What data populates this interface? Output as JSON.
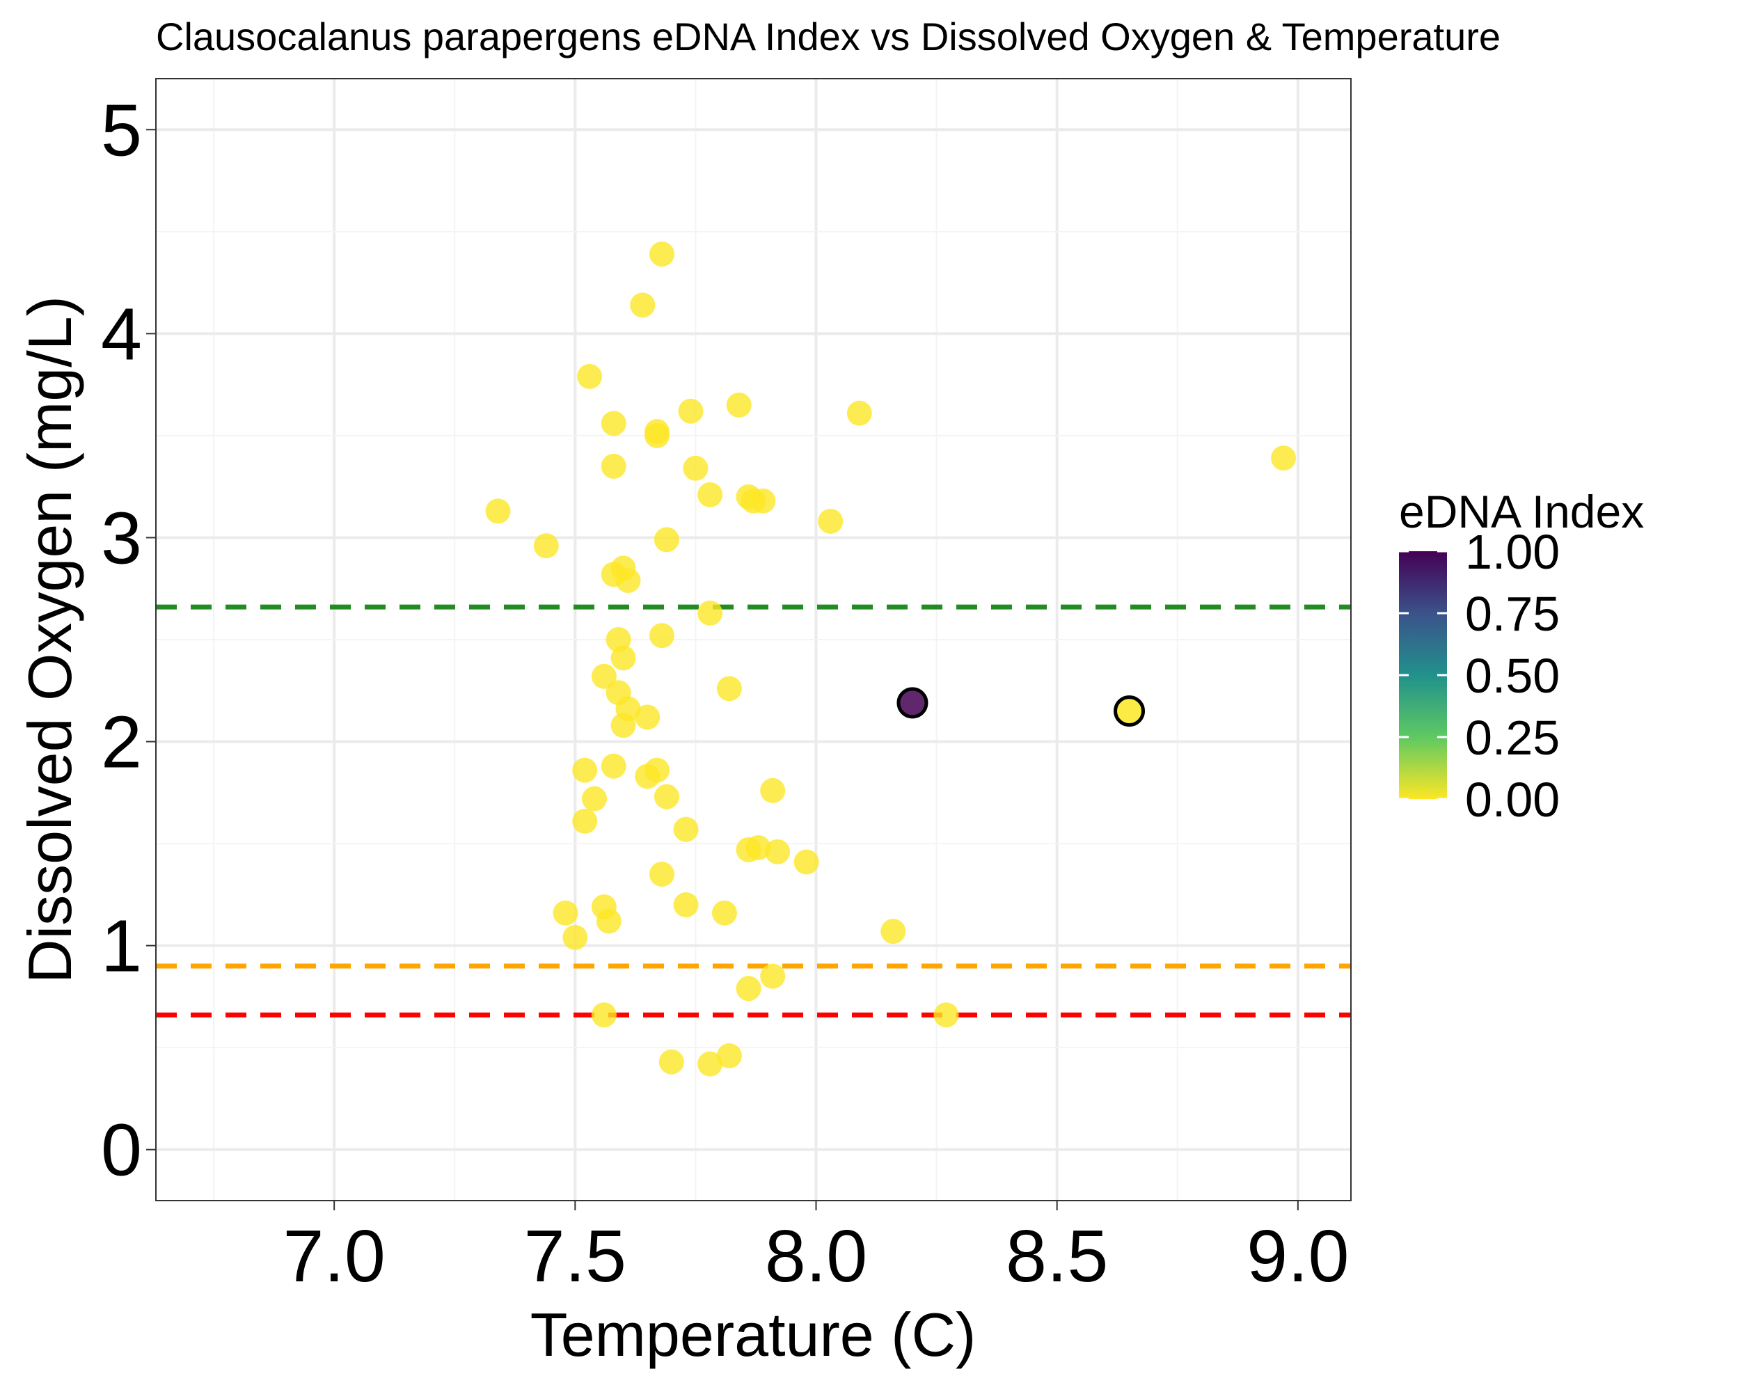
{
  "chart_data": {
    "type": "scatter",
    "title": "Clausocalanus parapergens eDNA Index vs Dissolved Oxygen & Temperature",
    "xlabel": "Temperature (C)",
    "ylabel": "Dissolved Oxygen (mg/L)",
    "xlim": [
      6.63,
      9.11
    ],
    "ylim": [
      -0.25,
      5.25
    ],
    "xticks": [
      7.0,
      7.5,
      8.0,
      8.5,
      9.0
    ],
    "xtick_labels": [
      "7.0",
      "7.5",
      "8.0",
      "8.5",
      "9.0"
    ],
    "yticks": [
      0,
      1,
      2,
      3,
      4,
      5
    ],
    "ytick_labels": [
      "0",
      "1",
      "2",
      "3",
      "4",
      "5"
    ],
    "grid": true,
    "reference_lines": [
      {
        "y": 2.66,
        "color": "#228B22",
        "style": "dashed"
      },
      {
        "y": 0.9,
        "color": "#FFA500",
        "style": "dashed"
      },
      {
        "y": 0.66,
        "color": "#FF0000",
        "style": "dashed"
      }
    ],
    "legend": {
      "title": "eDNA Index",
      "type": "colorbar",
      "placement": "right",
      "ticks": [
        "1.00",
        "0.75",
        "0.50",
        "0.25",
        "0.00"
      ],
      "tick_values": [
        1.0,
        0.75,
        0.5,
        0.25,
        0.0
      ],
      "colormap": [
        "#FDE725",
        "#5EC962",
        "#21918C",
        "#3B528B",
        "#440154"
      ]
    },
    "points": [
      {
        "x": 7.68,
        "y": 4.39,
        "edna": 0.0
      },
      {
        "x": 7.64,
        "y": 4.14,
        "edna": 0.0
      },
      {
        "x": 7.53,
        "y": 3.79,
        "edna": 0.0
      },
      {
        "x": 7.74,
        "y": 3.62,
        "edna": 0.0
      },
      {
        "x": 7.84,
        "y": 3.65,
        "edna": 0.0
      },
      {
        "x": 7.58,
        "y": 3.56,
        "edna": 0.0
      },
      {
        "x": 7.67,
        "y": 3.52,
        "edna": 0.0
      },
      {
        "x": 7.67,
        "y": 3.5,
        "edna": 0.0
      },
      {
        "x": 8.09,
        "y": 3.61,
        "edna": 0.0
      },
      {
        "x": 8.97,
        "y": 3.39,
        "edna": 0.0
      },
      {
        "x": 7.58,
        "y": 3.35,
        "edna": 0.0
      },
      {
        "x": 7.75,
        "y": 3.34,
        "edna": 0.0
      },
      {
        "x": 7.78,
        "y": 3.21,
        "edna": 0.0
      },
      {
        "x": 7.86,
        "y": 3.2,
        "edna": 0.0
      },
      {
        "x": 7.87,
        "y": 3.18,
        "edna": 0.0
      },
      {
        "x": 7.89,
        "y": 3.18,
        "edna": 0.0
      },
      {
        "x": 7.34,
        "y": 3.13,
        "edna": 0.0
      },
      {
        "x": 8.03,
        "y": 3.08,
        "edna": 0.0
      },
      {
        "x": 7.44,
        "y": 2.96,
        "edna": 0.0
      },
      {
        "x": 7.69,
        "y": 2.99,
        "edna": 0.0
      },
      {
        "x": 7.6,
        "y": 2.85,
        "edna": 0.0
      },
      {
        "x": 7.58,
        "y": 2.82,
        "edna": 0.0
      },
      {
        "x": 7.61,
        "y": 2.79,
        "edna": 0.0
      },
      {
        "x": 7.78,
        "y": 2.63,
        "edna": 0.0
      },
      {
        "x": 7.68,
        "y": 2.52,
        "edna": 0.0
      },
      {
        "x": 7.59,
        "y": 2.5,
        "edna": 0.0
      },
      {
        "x": 7.6,
        "y": 2.41,
        "edna": 0.0
      },
      {
        "x": 7.56,
        "y": 2.32,
        "edna": 0.0
      },
      {
        "x": 7.82,
        "y": 2.26,
        "edna": 0.0
      },
      {
        "x": 7.59,
        "y": 2.24,
        "edna": 0.0
      },
      {
        "x": 7.61,
        "y": 2.16,
        "edna": 0.0
      },
      {
        "x": 7.65,
        "y": 2.12,
        "edna": 0.0
      },
      {
        "x": 7.6,
        "y": 2.08,
        "edna": 0.0
      },
      {
        "x": 8.2,
        "y": 2.19,
        "edna": 1.0,
        "highlight": true
      },
      {
        "x": 8.65,
        "y": 2.15,
        "edna": 0.0,
        "highlight": true
      },
      {
        "x": 7.58,
        "y": 1.88,
        "edna": 0.0
      },
      {
        "x": 7.52,
        "y": 1.86,
        "edna": 0.0
      },
      {
        "x": 7.67,
        "y": 1.86,
        "edna": 0.0
      },
      {
        "x": 7.65,
        "y": 1.83,
        "edna": 0.0
      },
      {
        "x": 7.91,
        "y": 1.76,
        "edna": 0.0
      },
      {
        "x": 7.69,
        "y": 1.73,
        "edna": 0.0
      },
      {
        "x": 7.54,
        "y": 1.72,
        "edna": 0.0
      },
      {
        "x": 7.52,
        "y": 1.61,
        "edna": 0.0
      },
      {
        "x": 7.73,
        "y": 1.57,
        "edna": 0.0
      },
      {
        "x": 7.86,
        "y": 1.47,
        "edna": 0.0
      },
      {
        "x": 7.88,
        "y": 1.48,
        "edna": 0.0
      },
      {
        "x": 7.92,
        "y": 1.46,
        "edna": 0.0
      },
      {
        "x": 7.98,
        "y": 1.41,
        "edna": 0.0
      },
      {
        "x": 7.68,
        "y": 1.35,
        "edna": 0.0
      },
      {
        "x": 7.73,
        "y": 1.2,
        "edna": 0.0
      },
      {
        "x": 7.56,
        "y": 1.19,
        "edna": 0.0
      },
      {
        "x": 7.48,
        "y": 1.16,
        "edna": 0.0
      },
      {
        "x": 7.81,
        "y": 1.16,
        "edna": 0.0
      },
      {
        "x": 7.57,
        "y": 1.12,
        "edna": 0.0
      },
      {
        "x": 8.16,
        "y": 1.07,
        "edna": 0.0
      },
      {
        "x": 7.5,
        "y": 1.04,
        "edna": 0.0
      },
      {
        "x": 7.91,
        "y": 0.85,
        "edna": 0.0
      },
      {
        "x": 7.86,
        "y": 0.79,
        "edna": 0.0
      },
      {
        "x": 7.56,
        "y": 0.66,
        "edna": 0.0
      },
      {
        "x": 8.27,
        "y": 0.66,
        "edna": 0.0
      },
      {
        "x": 7.82,
        "y": 0.46,
        "edna": 0.0
      },
      {
        "x": 7.7,
        "y": 0.43,
        "edna": 0.0
      },
      {
        "x": 7.78,
        "y": 0.42,
        "edna": 0.0
      }
    ]
  }
}
